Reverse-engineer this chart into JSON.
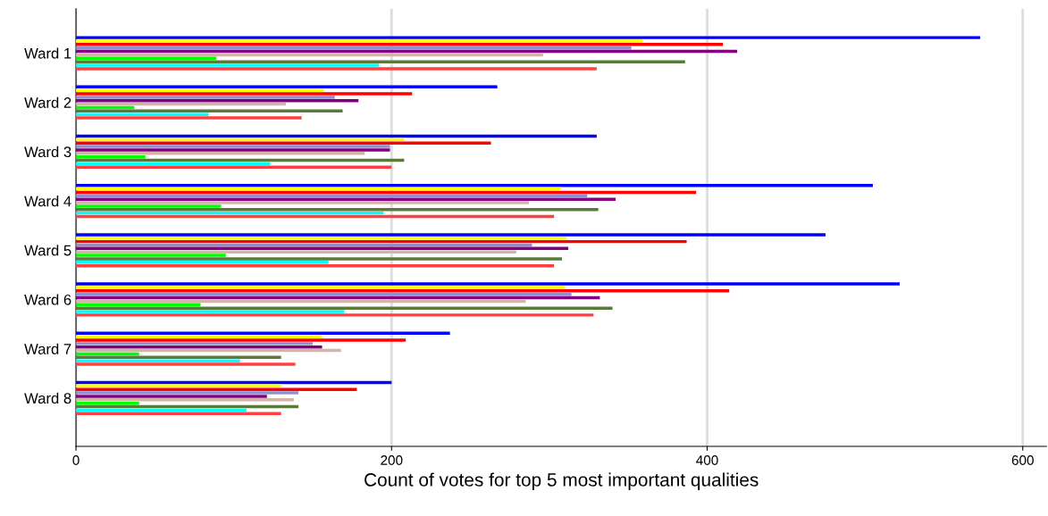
{
  "chart_data": {
    "type": "bar",
    "orientation": "horizontal",
    "xlabel": "Count of votes for top 5 most important qualities",
    "categories": [
      "Ward 1",
      "Ward 2",
      "Ward 3",
      "Ward 4",
      "Ward 5",
      "Ward 6",
      "Ward 7",
      "Ward 8"
    ],
    "series": [
      {
        "color": "#0000ff",
        "values": [
          573,
          267,
          330,
          505,
          475,
          522,
          237,
          200
        ]
      },
      {
        "color": "#ffff00",
        "values": [
          359,
          157,
          208,
          307,
          311,
          310,
          156,
          130
        ]
      },
      {
        "color": "#ff0000",
        "values": [
          410,
          213,
          263,
          393,
          387,
          414,
          209,
          178
        ]
      },
      {
        "color": "#9090d0",
        "values": [
          352,
          164,
          199,
          324,
          289,
          314,
          150,
          141
        ]
      },
      {
        "color": "#800080",
        "values": [
          419,
          179,
          199,
          342,
          312,
          332,
          156,
          121
        ]
      },
      {
        "color": "#d2b4a8",
        "values": [
          296,
          133,
          183,
          287,
          279,
          285,
          168,
          138
        ]
      },
      {
        "color": "#00ff00",
        "values": [
          89,
          37,
          44,
          92,
          95,
          79,
          40,
          40
        ]
      },
      {
        "color": "#5a7a3a",
        "values": [
          386,
          169,
          208,
          331,
          308,
          340,
          130,
          141
        ]
      },
      {
        "color": "#00ffff",
        "values": [
          192,
          84,
          123,
          195,
          160,
          170,
          104,
          108
        ]
      },
      {
        "color": "#ff4040",
        "values": [
          330,
          143,
          200,
          303,
          303,
          328,
          139,
          130
        ]
      }
    ],
    "xlim": [
      0,
      615
    ],
    "xticks": [
      0,
      200,
      400,
      600
    ],
    "grid": "x",
    "legend": false
  }
}
